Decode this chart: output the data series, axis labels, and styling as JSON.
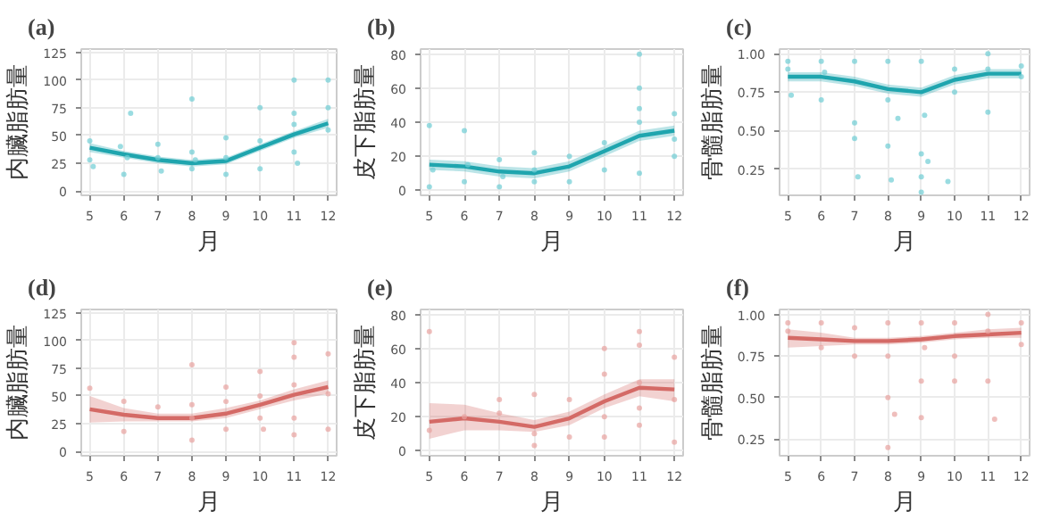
{
  "chart_data": [
    {
      "type": "line",
      "title": "(a)",
      "xlabel": "月",
      "ylabel": "内臟脂肪量",
      "xlim": [
        4.75,
        12.25
      ],
      "xticks": [
        5,
        6,
        7,
        8,
        9,
        10,
        11,
        12
      ],
      "ylim": [
        -4,
        128
      ],
      "yticks": [
        0,
        25,
        50,
        75,
        100,
        125
      ],
      "grid": true,
      "series": [
        {
          "type": "scatter",
          "marker": "circle",
          "color": "#6fcdd4",
          "x": [
            5,
            5,
            5.1,
            5.9,
            6,
            6.1,
            6.2,
            7,
            7.1,
            7,
            8,
            8,
            8,
            8.1,
            9,
            9,
            9,
            10,
            10,
            10,
            11,
            11,
            11,
            11,
            11.1,
            12,
            12,
            12
          ],
          "values": [
            28,
            45,
            22,
            40,
            15,
            30,
            70,
            42,
            18,
            30,
            20,
            35,
            83,
            28,
            15,
            48,
            30,
            20,
            45,
            75,
            100,
            60,
            35,
            70,
            25,
            100,
            55,
            75
          ]
        },
        {
          "color": "#1fa5ae",
          "x": [
            5,
            6,
            7,
            8,
            9,
            10,
            11,
            12
          ],
          "values": [
            39,
            33,
            28,
            25,
            27,
            39,
            51,
            61
          ],
          "lower": [
            35,
            30,
            25,
            22,
            24,
            36,
            48,
            57
          ],
          "upper": [
            43,
            36,
            31,
            28,
            30,
            42,
            54,
            65
          ]
        }
      ]
    },
    {
      "type": "line",
      "title": "(b)",
      "xlabel": "月",
      "ylabel": "皮下脂肪量",
      "xlim": [
        4.75,
        12.25
      ],
      "xticks": [
        5,
        6,
        7,
        8,
        9,
        10,
        11,
        12
      ],
      "ylim": [
        -3,
        83
      ],
      "yticks": [
        0,
        20,
        40,
        60,
        80
      ],
      "grid": true,
      "series": [
        {
          "type": "scatter",
          "marker": "circle",
          "color": "#6fcdd4",
          "x": [
            5,
            5,
            5.1,
            6,
            6,
            6.1,
            7,
            7,
            7.1,
            8,
            8,
            8,
            9,
            9,
            10,
            10,
            11,
            11,
            11,
            11,
            11,
            12,
            12,
            12
          ],
          "values": [
            38,
            2,
            12,
            35,
            5,
            15,
            2,
            18,
            8,
            5,
            22,
            12,
            5,
            20,
            28,
            12,
            48,
            80,
            60,
            10,
            40,
            45,
            20,
            30
          ]
        },
        {
          "color": "#1fa5ae",
          "x": [
            5,
            6,
            7,
            8,
            9,
            10,
            11,
            12
          ],
          "values": [
            15,
            14,
            11,
            10,
            14,
            23,
            32,
            35
          ],
          "lower": [
            12,
            11,
            8,
            7,
            11,
            20,
            29,
            32
          ],
          "upper": [
            18,
            17,
            14,
            13,
            17,
            26,
            35,
            38
          ]
        }
      ]
    },
    {
      "type": "line",
      "title": "(c)",
      "xlabel": "月",
      "ylabel": "骨髓脂肪量",
      "xlim": [
        4.75,
        12.25
      ],
      "xticks": [
        5,
        6,
        7,
        8,
        9,
        10,
        11,
        12
      ],
      "ylim": [
        0.08,
        1.03
      ],
      "yticks": [
        {
          "value": 0.25,
          "label": "0.25"
        },
        {
          "value": 0.5,
          "label": "0.50"
        },
        {
          "value": 0.75,
          "label": "0.75"
        },
        {
          "value": 1,
          "label": "1.00"
        }
      ],
      "grid": true,
      "series": [
        {
          "type": "scatter",
          "marker": "circle",
          "color": "#6fcdd4",
          "x": [
            5,
            5,
            5.1,
            6,
            6,
            6.1,
            7,
            7,
            7,
            7.1,
            8,
            8,
            8,
            8.1,
            8.3,
            9,
            9,
            9,
            9,
            9.1,
            9.2,
            10,
            10,
            9.8,
            11,
            11,
            11,
            12,
            12
          ],
          "values": [
            0.95,
            0.9,
            0.73,
            0.95,
            0.7,
            0.88,
            0.95,
            0.55,
            0.45,
            0.2,
            0.95,
            0.7,
            0.4,
            0.18,
            0.58,
            0.95,
            0.35,
            0.2,
            0.1,
            0.6,
            0.3,
            0.9,
            0.75,
            0.17,
            1.0,
            0.62,
            0.9,
            0.92,
            0.85
          ]
        },
        {
          "color": "#1fa5ae",
          "x": [
            5,
            6,
            7,
            8,
            9,
            10,
            11,
            12
          ],
          "values": [
            0.85,
            0.85,
            0.82,
            0.77,
            0.75,
            0.83,
            0.87,
            0.87
          ],
          "lower": [
            0.82,
            0.82,
            0.79,
            0.74,
            0.72,
            0.8,
            0.84,
            0.84
          ],
          "upper": [
            0.88,
            0.88,
            0.85,
            0.8,
            0.78,
            0.86,
            0.9,
            0.9
          ]
        }
      ]
    },
    {
      "type": "line",
      "title": "(d)",
      "xlabel": "月",
      "ylabel": "内臟脂肪量",
      "xlim": [
        4.75,
        12.25
      ],
      "xticks": [
        5,
        6,
        7,
        8,
        9,
        10,
        11,
        12
      ],
      "ylim": [
        -4,
        128
      ],
      "yticks": [
        0,
        25,
        50,
        75,
        100,
        125
      ],
      "grid": true,
      "series": [
        {
          "type": "scatter",
          "marker": "circle",
          "color": "#e8a3a0",
          "x": [
            5,
            6,
            6,
            7,
            8,
            8,
            8,
            8,
            9,
            9,
            9,
            10,
            10,
            10,
            10.1,
            11,
            11,
            11,
            11,
            11,
            12,
            12,
            12
          ],
          "values": [
            57,
            45,
            18,
            40,
            42,
            78,
            10,
            30,
            58,
            20,
            45,
            72,
            30,
            50,
            20,
            98,
            85,
            60,
            30,
            15,
            88,
            20,
            52
          ]
        },
        {
          "color": "#d46a66",
          "x": [
            5,
            6,
            7,
            8,
            9,
            10,
            11,
            12
          ],
          "values": [
            38,
            33,
            30,
            30,
            34,
            42,
            51,
            58
          ],
          "lower": [
            26,
            27,
            27,
            27,
            30,
            38,
            46,
            52
          ],
          "upper": [
            50,
            39,
            34,
            34,
            39,
            46,
            56,
            64
          ]
        }
      ]
    },
    {
      "type": "line",
      "title": "(e)",
      "xlabel": "月",
      "ylabel": "皮下脂肪量",
      "xlim": [
        4.75,
        12.25
      ],
      "xticks": [
        5,
        6,
        7,
        8,
        9,
        10,
        11,
        12
      ],
      "ylim": [
        -3,
        83
      ],
      "yticks": [
        0,
        20,
        40,
        60,
        80
      ],
      "grid": true,
      "series": [
        {
          "type": "scatter",
          "marker": "circle",
          "color": "#e8a3a0",
          "x": [
            5,
            5,
            6,
            7,
            7,
            8,
            8,
            8,
            9,
            9,
            10,
            10,
            10,
            10,
            11,
            11,
            11,
            11,
            11,
            12,
            12,
            12
          ],
          "values": [
            70,
            12,
            20,
            30,
            22,
            10,
            33,
            3,
            8,
            30,
            60,
            8,
            45,
            20,
            70,
            62,
            25,
            15,
            40,
            55,
            5,
            30
          ]
        },
        {
          "color": "#d46a66",
          "x": [
            5,
            6,
            7,
            8,
            9,
            10,
            11,
            12
          ],
          "values": [
            17,
            19,
            17,
            14,
            19,
            29,
            37,
            36
          ],
          "lower": [
            7,
            12,
            12,
            11,
            15,
            25,
            32,
            29
          ],
          "upper": [
            28,
            27,
            22,
            18,
            23,
            33,
            42,
            42
          ]
        }
      ]
    },
    {
      "type": "line",
      "title": "(f)",
      "xlabel": "月",
      "ylabel": "骨髓脂肪量",
      "xlim": [
        4.75,
        12.25
      ],
      "xticks": [
        5,
        6,
        7,
        8,
        9,
        10,
        11,
        12
      ],
      "ylim": [
        0.15,
        1.03
      ],
      "yticks": [
        {
          "value": 0.25,
          "label": "0.25"
        },
        {
          "value": 0.5,
          "label": "0.50"
        },
        {
          "value": 0.75,
          "label": "0.75"
        },
        {
          "value": 1,
          "label": "1.00"
        }
      ],
      "grid": true,
      "series": [
        {
          "type": "scatter",
          "marker": "circle",
          "color": "#e8a3a0",
          "x": [
            5,
            5,
            6,
            6,
            7,
            7,
            8,
            8,
            8,
            8,
            8.2,
            9,
            9,
            9,
            9.1,
            10,
            10,
            10,
            11,
            11,
            11,
            11.2,
            12,
            12
          ],
          "values": [
            0.95,
            0.9,
            0.8,
            0.95,
            0.75,
            0.92,
            0.95,
            0.75,
            0.5,
            0.2,
            0.4,
            0.95,
            0.6,
            0.38,
            0.8,
            0.95,
            0.6,
            0.75,
            1.0,
            0.9,
            0.6,
            0.37,
            0.95,
            0.82
          ]
        },
        {
          "color": "#d46a66",
          "x": [
            5,
            6,
            7,
            8,
            9,
            10,
            11,
            12
          ],
          "values": [
            0.86,
            0.85,
            0.84,
            0.84,
            0.85,
            0.87,
            0.88,
            0.89
          ],
          "lower": [
            0.8,
            0.81,
            0.82,
            0.82,
            0.83,
            0.85,
            0.86,
            0.86
          ],
          "upper": [
            0.91,
            0.89,
            0.86,
            0.86,
            0.87,
            0.89,
            0.91,
            0.92
          ]
        }
      ]
    }
  ]
}
